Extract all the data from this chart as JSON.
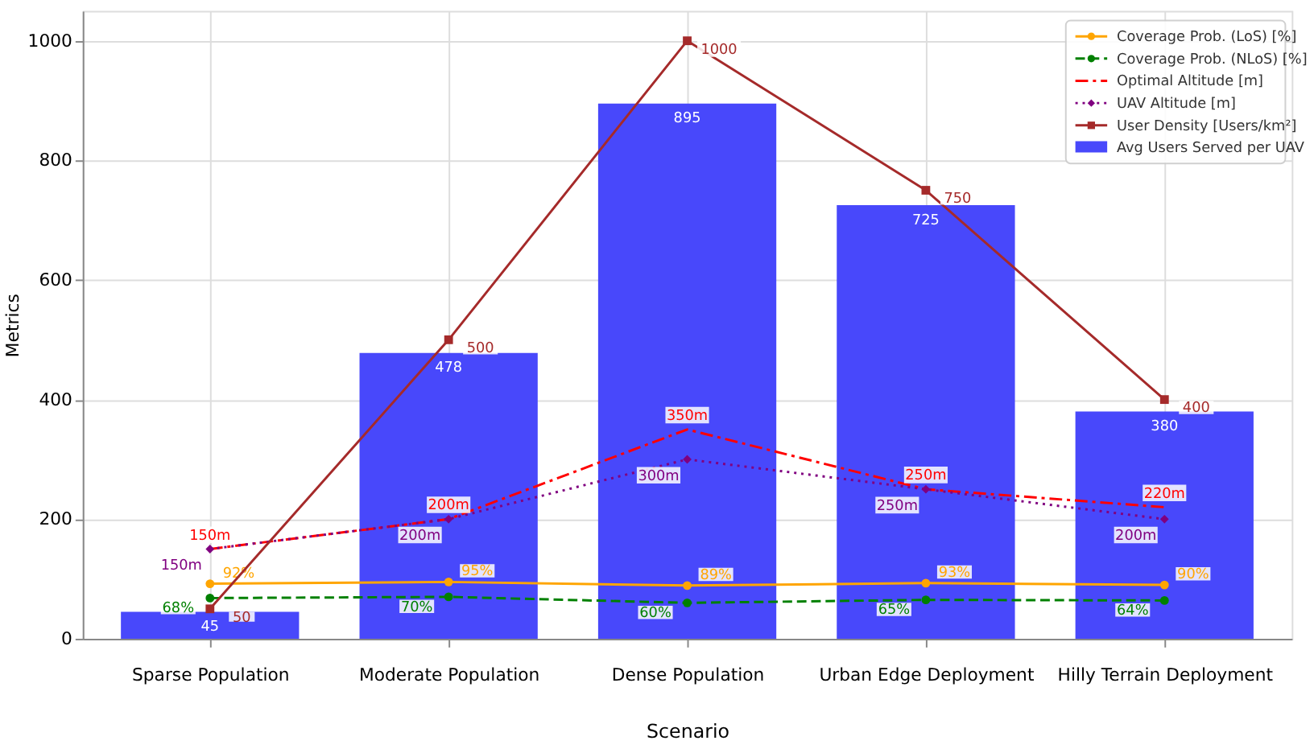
{
  "chart_data": {
    "type": "bar",
    "xlabel": "Scenario",
    "ylabel": "Metrics",
    "categories": [
      "Sparse Population",
      "Moderate Population",
      "Dense Population",
      "Urban Edge Deployment",
      "Hilly Terrain Deployment"
    ],
    "series": [
      {
        "name": "Avg Users Served per UAV",
        "color": "#4848fb",
        "values": [
          45,
          478,
          895,
          725,
          380
        ],
        "value_labels": [
          "45",
          "478",
          "895",
          "725",
          "380"
        ]
      },
      {
        "name": "Coverage Prob. (LoS) [%]",
        "type": "line",
        "color": "#ffa500",
        "marker": "circle",
        "line_style": "solid",
        "values": [
          92,
          95,
          89,
          93,
          90
        ],
        "value_labels": [
          "92%",
          "95%",
          "89%",
          "93%",
          "90%"
        ]
      },
      {
        "name": "Coverage Prob. (NLoS) [%]",
        "type": "line",
        "color": "#008000",
        "marker": "circle",
        "line_style": "dashed",
        "values": [
          68,
          70,
          60,
          65,
          64
        ],
        "value_labels": [
          "68%",
          "70%",
          "60%",
          "65%",
          "64%"
        ]
      },
      {
        "name": "Optimal Altitude [m]",
        "type": "line",
        "color": "#ff0000",
        "marker": "none",
        "line_style": "dashdot",
        "values": [
          150,
          200,
          350,
          250,
          220
        ],
        "value_labels": [
          "150m",
          "200m",
          "350m",
          "250m",
          "220m"
        ]
      },
      {
        "name": "UAV Altitude [m]",
        "type": "line",
        "color": "#800080",
        "marker": "diamond",
        "line_style": "dotted",
        "values": [
          150,
          200,
          300,
          250,
          200
        ],
        "value_labels": [
          "150m",
          "200m",
          "300m",
          "250m",
          "200m"
        ]
      },
      {
        "name": "User Density [Users/km²]",
        "type": "line",
        "color": "#a52a2a",
        "marker": "square",
        "line_style": "solid",
        "values": [
          50,
          500,
          1000,
          750,
          400
        ],
        "value_labels": [
          "50",
          "500",
          "1000",
          "750",
          "400"
        ]
      }
    ],
    "ylim": [
      0,
      1050
    ],
    "yticks": [
      0,
      200,
      400,
      600,
      800,
      {
        "value": 1000,
        "label": "1000"
      }
    ],
    "grid": true,
    "legend": "top right"
  }
}
